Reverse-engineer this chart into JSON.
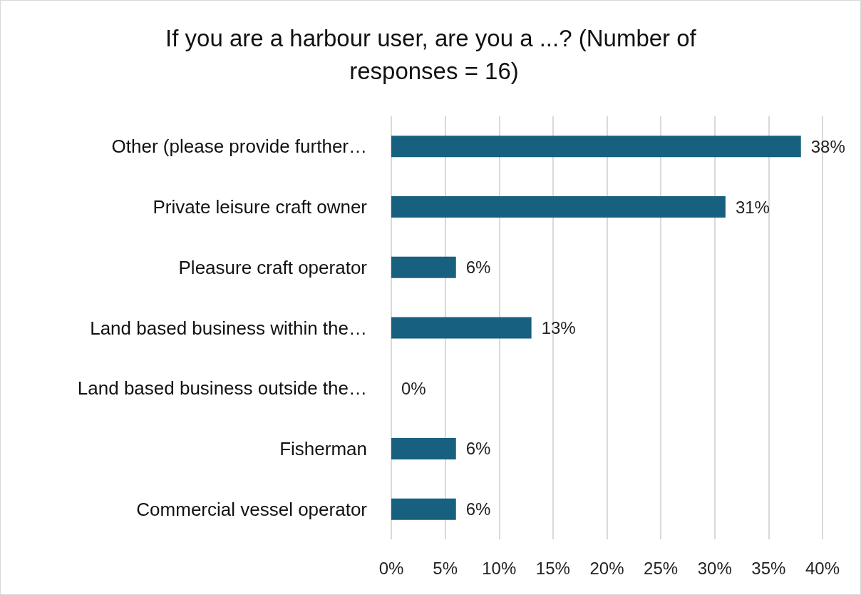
{
  "chart_data": {
    "type": "bar",
    "orientation": "horizontal",
    "title": "If you are a harbour user, are you a ...? (Number of responses = 16)",
    "categories": [
      "Other (please provide further…",
      "Private leisure craft owner",
      "Pleasure craft operator",
      "Land based business within the…",
      "Land based business outside the…",
      "Fisherman",
      "Commercial vessel operator"
    ],
    "values": [
      38,
      31,
      6,
      13,
      0,
      6,
      6
    ],
    "value_labels": [
      "38%",
      "31%",
      "6%",
      "13%",
      "0%",
      "6%",
      "6%"
    ],
    "color": "#17607f",
    "xlim": [
      0,
      40
    ],
    "xticks": [
      {
        "value": 0,
        "label": "0%"
      },
      {
        "value": 5,
        "label": "5%"
      },
      {
        "value": 10,
        "label": "10%"
      },
      {
        "value": 15,
        "label": "15%"
      },
      {
        "value": 20,
        "label": "20%"
      },
      {
        "value": 25,
        "label": "25%"
      },
      {
        "value": 30,
        "label": "30%"
      },
      {
        "value": 35,
        "label": "35%"
      },
      {
        "value": 40,
        "label": "40%"
      }
    ],
    "grid": "x"
  }
}
